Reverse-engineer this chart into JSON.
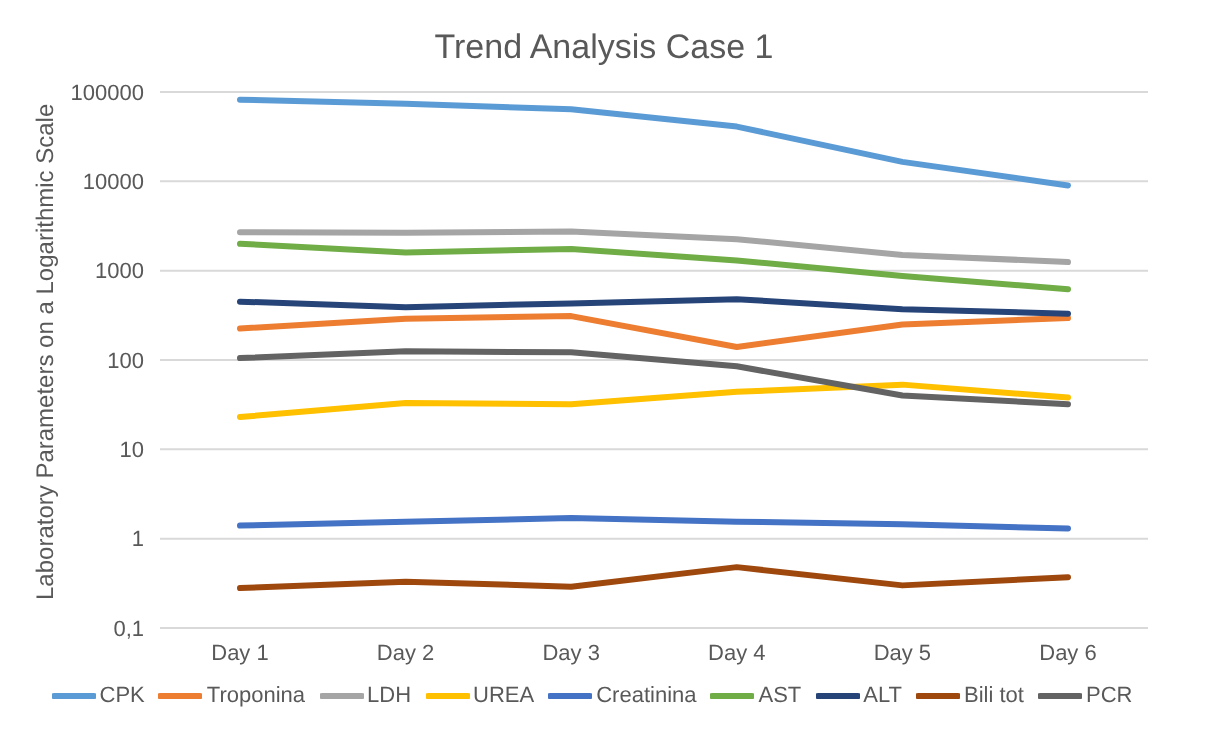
{
  "chart_data": {
    "type": "line",
    "title": "Trend Analysis Case 1",
    "ylabel": "Laboratory Parameters on a Logarithmic Scale",
    "categories": [
      "Day 1",
      "Day 2",
      "Day 3",
      "Day 4",
      "Day 5",
      "Day 6"
    ],
    "series": [
      {
        "name": "CPK",
        "color": "#5b9bd5",
        "values": [
          82000,
          74000,
          64000,
          41000,
          16500,
          9000
        ]
      },
      {
        "name": "Troponina",
        "color": "#ed7d31",
        "values": [
          225,
          290,
          310,
          140,
          250,
          295
        ]
      },
      {
        "name": "LDH",
        "color": "#a5a5a5",
        "values": [
          2700,
          2650,
          2750,
          2250,
          1500,
          1250
        ]
      },
      {
        "name": "UREA",
        "color": "#ffc000",
        "values": [
          23,
          33,
          32,
          44,
          53,
          38
        ]
      },
      {
        "name": "Creatinina",
        "color": "#4472c4",
        "values": [
          1.4,
          1.55,
          1.7,
          1.55,
          1.45,
          1.3
        ]
      },
      {
        "name": "AST",
        "color": "#70ad47",
        "values": [
          2000,
          1600,
          1750,
          1300,
          870,
          620
        ]
      },
      {
        "name": "ALT",
        "color": "#264478",
        "values": [
          450,
          390,
          430,
          480,
          370,
          330
        ]
      },
      {
        "name": "Bili tot",
        "color": "#9e480e",
        "values": [
          0.28,
          0.33,
          0.29,
          0.48,
          0.3,
          0.37
        ]
      },
      {
        "name": "PCR",
        "color": "#636363",
        "values": [
          105,
          125,
          122,
          85,
          40,
          32
        ]
      }
    ],
    "log": "y",
    "ylim": [
      0.1,
      100000
    ],
    "yticks": [
      {
        "value": 0.1,
        "label": "0,1"
      },
      1,
      10,
      100,
      1000,
      10000,
      100000
    ],
    "grid": "y",
    "legend": "bottom",
    "marker": "none",
    "line_style": "solid"
  }
}
